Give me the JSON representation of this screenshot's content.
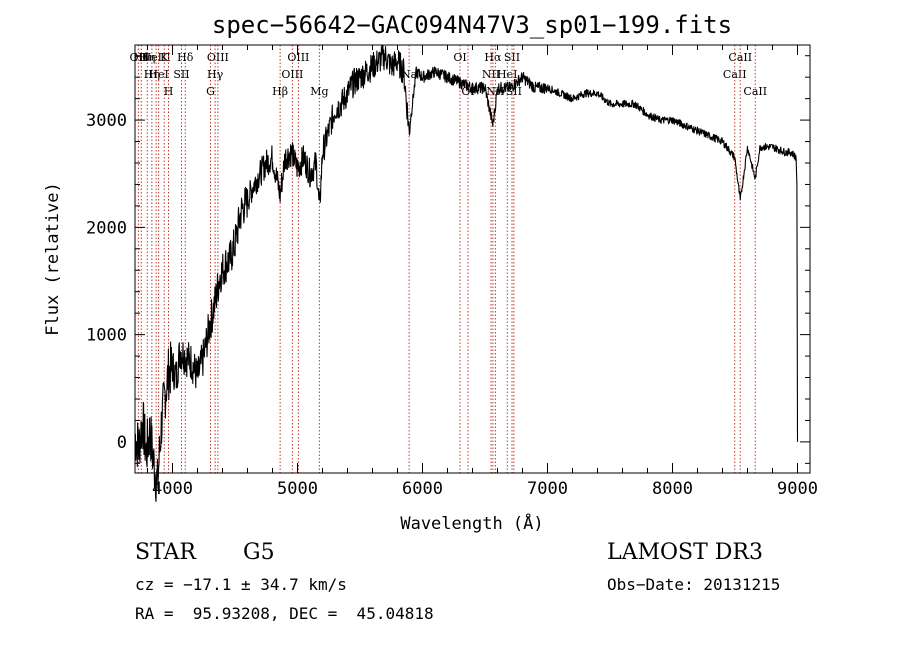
{
  "chart_data": {
    "type": "line",
    "title": "spec−56642−GAC094N47V3_sp01−199.fits",
    "xlabel": "Wavelength (Å)",
    "ylabel": "Flux (relative)",
    "xlim": [
      3700,
      9100
    ],
    "ylim": [
      -290,
      3700
    ],
    "xticks": [
      4000,
      5000,
      6000,
      7000,
      8000,
      9000
    ],
    "xtick_labels": [
      "4000",
      "5000",
      "6000",
      "7000",
      "8000",
      "9000"
    ],
    "yticks": [
      0,
      1000,
      2000,
      3000
    ],
    "ytick_labels": [
      "0",
      "1000",
      "2000",
      "3000"
    ],
    "grid": false,
    "series": [
      {
        "name": "flux",
        "x": [
          3700,
          3730,
          3760,
          3790,
          3820,
          3850,
          3880,
          3910,
          3940,
          3970,
          4000,
          4030,
          4060,
          4100,
          4150,
          4200,
          4250,
          4300,
          4340,
          4380,
          4420,
          4460,
          4500,
          4550,
          4600,
          4650,
          4700,
          4750,
          4800,
          4861,
          4900,
          4950,
          5000,
          5050,
          5100,
          5150,
          5175,
          5200,
          5250,
          5300,
          5350,
          5400,
          5450,
          5500,
          5550,
          5600,
          5650,
          5700,
          5750,
          5800,
          5850,
          5893,
          5950,
          6000,
          6100,
          6200,
          6300,
          6400,
          6500,
          6563,
          6600,
          6700,
          6800,
          6900,
          7000,
          7100,
          7200,
          7300,
          7400,
          7500,
          7600,
          7700,
          7800,
          7900,
          8000,
          8100,
          8200,
          8300,
          8400,
          8498,
          8542,
          8600,
          8662,
          8700,
          8800,
          8900,
          8950,
          8990,
          9000
        ],
        "y": [
          50,
          -50,
          200,
          -100,
          100,
          -200,
          -400,
          150,
          450,
          650,
          700,
          600,
          850,
          800,
          750,
          600,
          800,
          1100,
          1300,
          1550,
          1650,
          1700,
          1850,
          2150,
          2250,
          2400,
          2500,
          2600,
          2650,
          2300,
          2650,
          2700,
          2550,
          2650,
          2500,
          2600,
          2150,
          2700,
          2900,
          3100,
          3150,
          3250,
          3350,
          3400,
          3450,
          3500,
          3550,
          3600,
          3500,
          3550,
          3450,
          2900,
          3450,
          3400,
          3450,
          3400,
          3350,
          3300,
          3300,
          2950,
          3300,
          3300,
          3400,
          3300,
          3300,
          3250,
          3200,
          3250,
          3250,
          3150,
          3150,
          3150,
          3050,
          3000,
          3000,
          2950,
          2900,
          2850,
          2800,
          2650,
          2250,
          2750,
          2450,
          2750,
          2750,
          2700,
          2700,
          2650,
          0
        ]
      }
    ],
    "lines": [
      {
        "w": 3727,
        "row": 0,
        "label": "OII"
      },
      {
        "w": 3750,
        "row": 0,
        "label": "Hθ"
      },
      {
        "w": 3798,
        "row": 0,
        "label": "Hη"
      },
      {
        "w": 3835,
        "row": 1,
        "label": "Hη"
      },
      {
        "w": 3869,
        "row": 0,
        "label": "NeIII"
      },
      {
        "w": 3889,
        "row": 1,
        "label": "HeI"
      },
      {
        "w": 3934,
        "row": 0,
        "label": "K"
      },
      {
        "w": 3968,
        "row": 2,
        "label": "H"
      },
      {
        "w": 4072,
        "row": 1,
        "label": "SII"
      },
      {
        "w": 4102,
        "row": 0,
        "label": "Hδ"
      },
      {
        "w": 4304,
        "row": 2,
        "label": "G"
      },
      {
        "w": 4341,
        "row": 1,
        "label": "Hγ"
      },
      {
        "w": 4363,
        "row": 0,
        "label": "OIII"
      },
      {
        "w": 4861,
        "row": 2,
        "label": "Hβ"
      },
      {
        "w": 4959,
        "row": 1,
        "label": "OIII"
      },
      {
        "w": 5007,
        "row": 0,
        "label": "OIII"
      },
      {
        "w": 5175,
        "row": 2,
        "label": "Mg"
      },
      {
        "w": 5893,
        "row": 1,
        "label": "Na"
      },
      {
        "w": 6300,
        "row": 0,
        "label": "OI"
      },
      {
        "w": 6364,
        "row": 2,
        "label": "OI"
      },
      {
        "w": 6548,
        "row": 1,
        "label": "NII"
      },
      {
        "w": 6563,
        "row": 0,
        "label": "Hα"
      },
      {
        "w": 6583,
        "row": 2,
        "label": "NII"
      },
      {
        "w": 6678,
        "row": 1,
        "label": "HeI"
      },
      {
        "w": 6716,
        "row": 0,
        "label": "SII"
      },
      {
        "w": 6731,
        "row": 2,
        "label": "SII"
      },
      {
        "w": 8498,
        "row": 1,
        "label": "CaII"
      },
      {
        "w": 8542,
        "row": 0,
        "label": "CaII"
      },
      {
        "w": 8662,
        "row": 2,
        "label": "CaII"
      }
    ]
  },
  "info": {
    "class_label": "STAR",
    "subclass": "G5",
    "survey": "LAMOST DR3",
    "cz": "cz = −17.1 ± 34.7 km/s",
    "obs_date": "Obs−Date: 20131215",
    "coords": "RA =  95.93208, DEC =  45.04818"
  }
}
